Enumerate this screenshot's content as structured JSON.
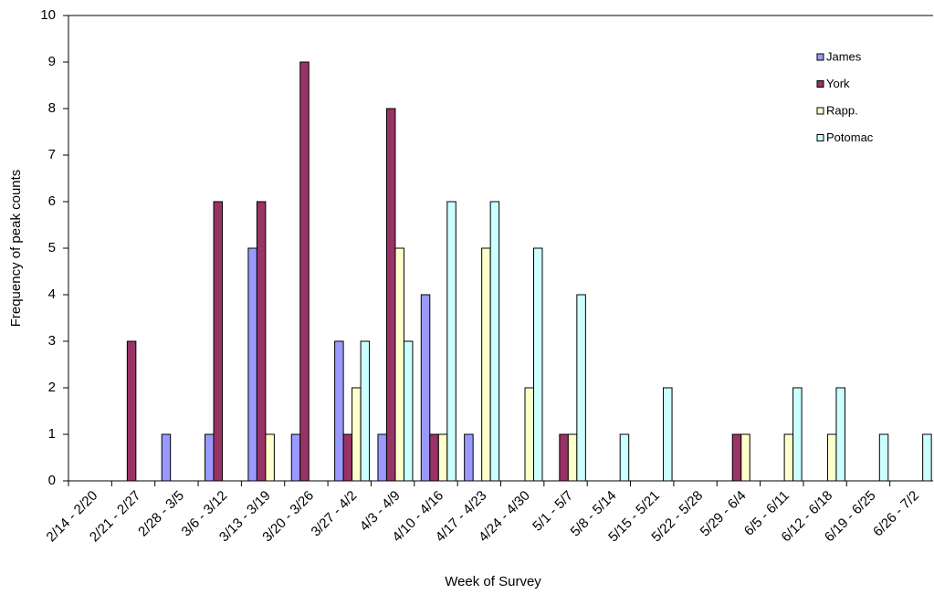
{
  "chart_data": {
    "type": "bar",
    "x_label": "Week of Survey",
    "y_label": "Frequency of peak counts",
    "categories": [
      "2/14 - 2/20",
      "2/21 - 2/27",
      "2/28 - 3/5",
      "3/6 - 3/12",
      "3/13 - 3/19",
      "3/20 - 3/26",
      "3/27 - 4/2",
      "4/3 - 4/9",
      "4/10 - 4/16",
      "4/17 - 4/23",
      "4/24 - 4/30",
      "5/1 - 5/7",
      "5/8 - 5/14",
      "5/15 - 5/21",
      "5/22 - 5/28",
      "5/29 - 6/4",
      "6/5 - 6/11",
      "6/12 - 6/18",
      "6/19 - 6/25",
      "6/26 - 7/2"
    ],
    "series": [
      {
        "name": "James",
        "color": "#9999ff",
        "values": [
          0,
          0,
          1,
          1,
          5,
          1,
          3,
          1,
          4,
          1,
          0,
          0,
          0,
          0,
          0,
          0,
          0,
          0,
          0,
          0
        ]
      },
      {
        "name": "York",
        "color": "#993366",
        "values": [
          0,
          3,
          0,
          6,
          6,
          9,
          1,
          8,
          1,
          0,
          0,
          1,
          0,
          0,
          0,
          1,
          0,
          0,
          0,
          0
        ]
      },
      {
        "name": "Rapp.",
        "color": "#ffffcc",
        "values": [
          0,
          0,
          0,
          0,
          1,
          0,
          2,
          5,
          1,
          5,
          2,
          1,
          0,
          0,
          0,
          1,
          1,
          1,
          0,
          0
        ]
      },
      {
        "name": "Potomac",
        "color": "#ccffff",
        "values": [
          0,
          0,
          0,
          0,
          0,
          0,
          3,
          3,
          6,
          6,
          5,
          4,
          1,
          2,
          0,
          0,
          2,
          2,
          1,
          1
        ]
      }
    ],
    "ylim": [
      0,
      10
    ],
    "yticks": [
      0,
      1,
      2,
      3,
      4,
      5,
      6,
      7,
      8,
      9,
      10
    ],
    "legend": "top-right"
  }
}
